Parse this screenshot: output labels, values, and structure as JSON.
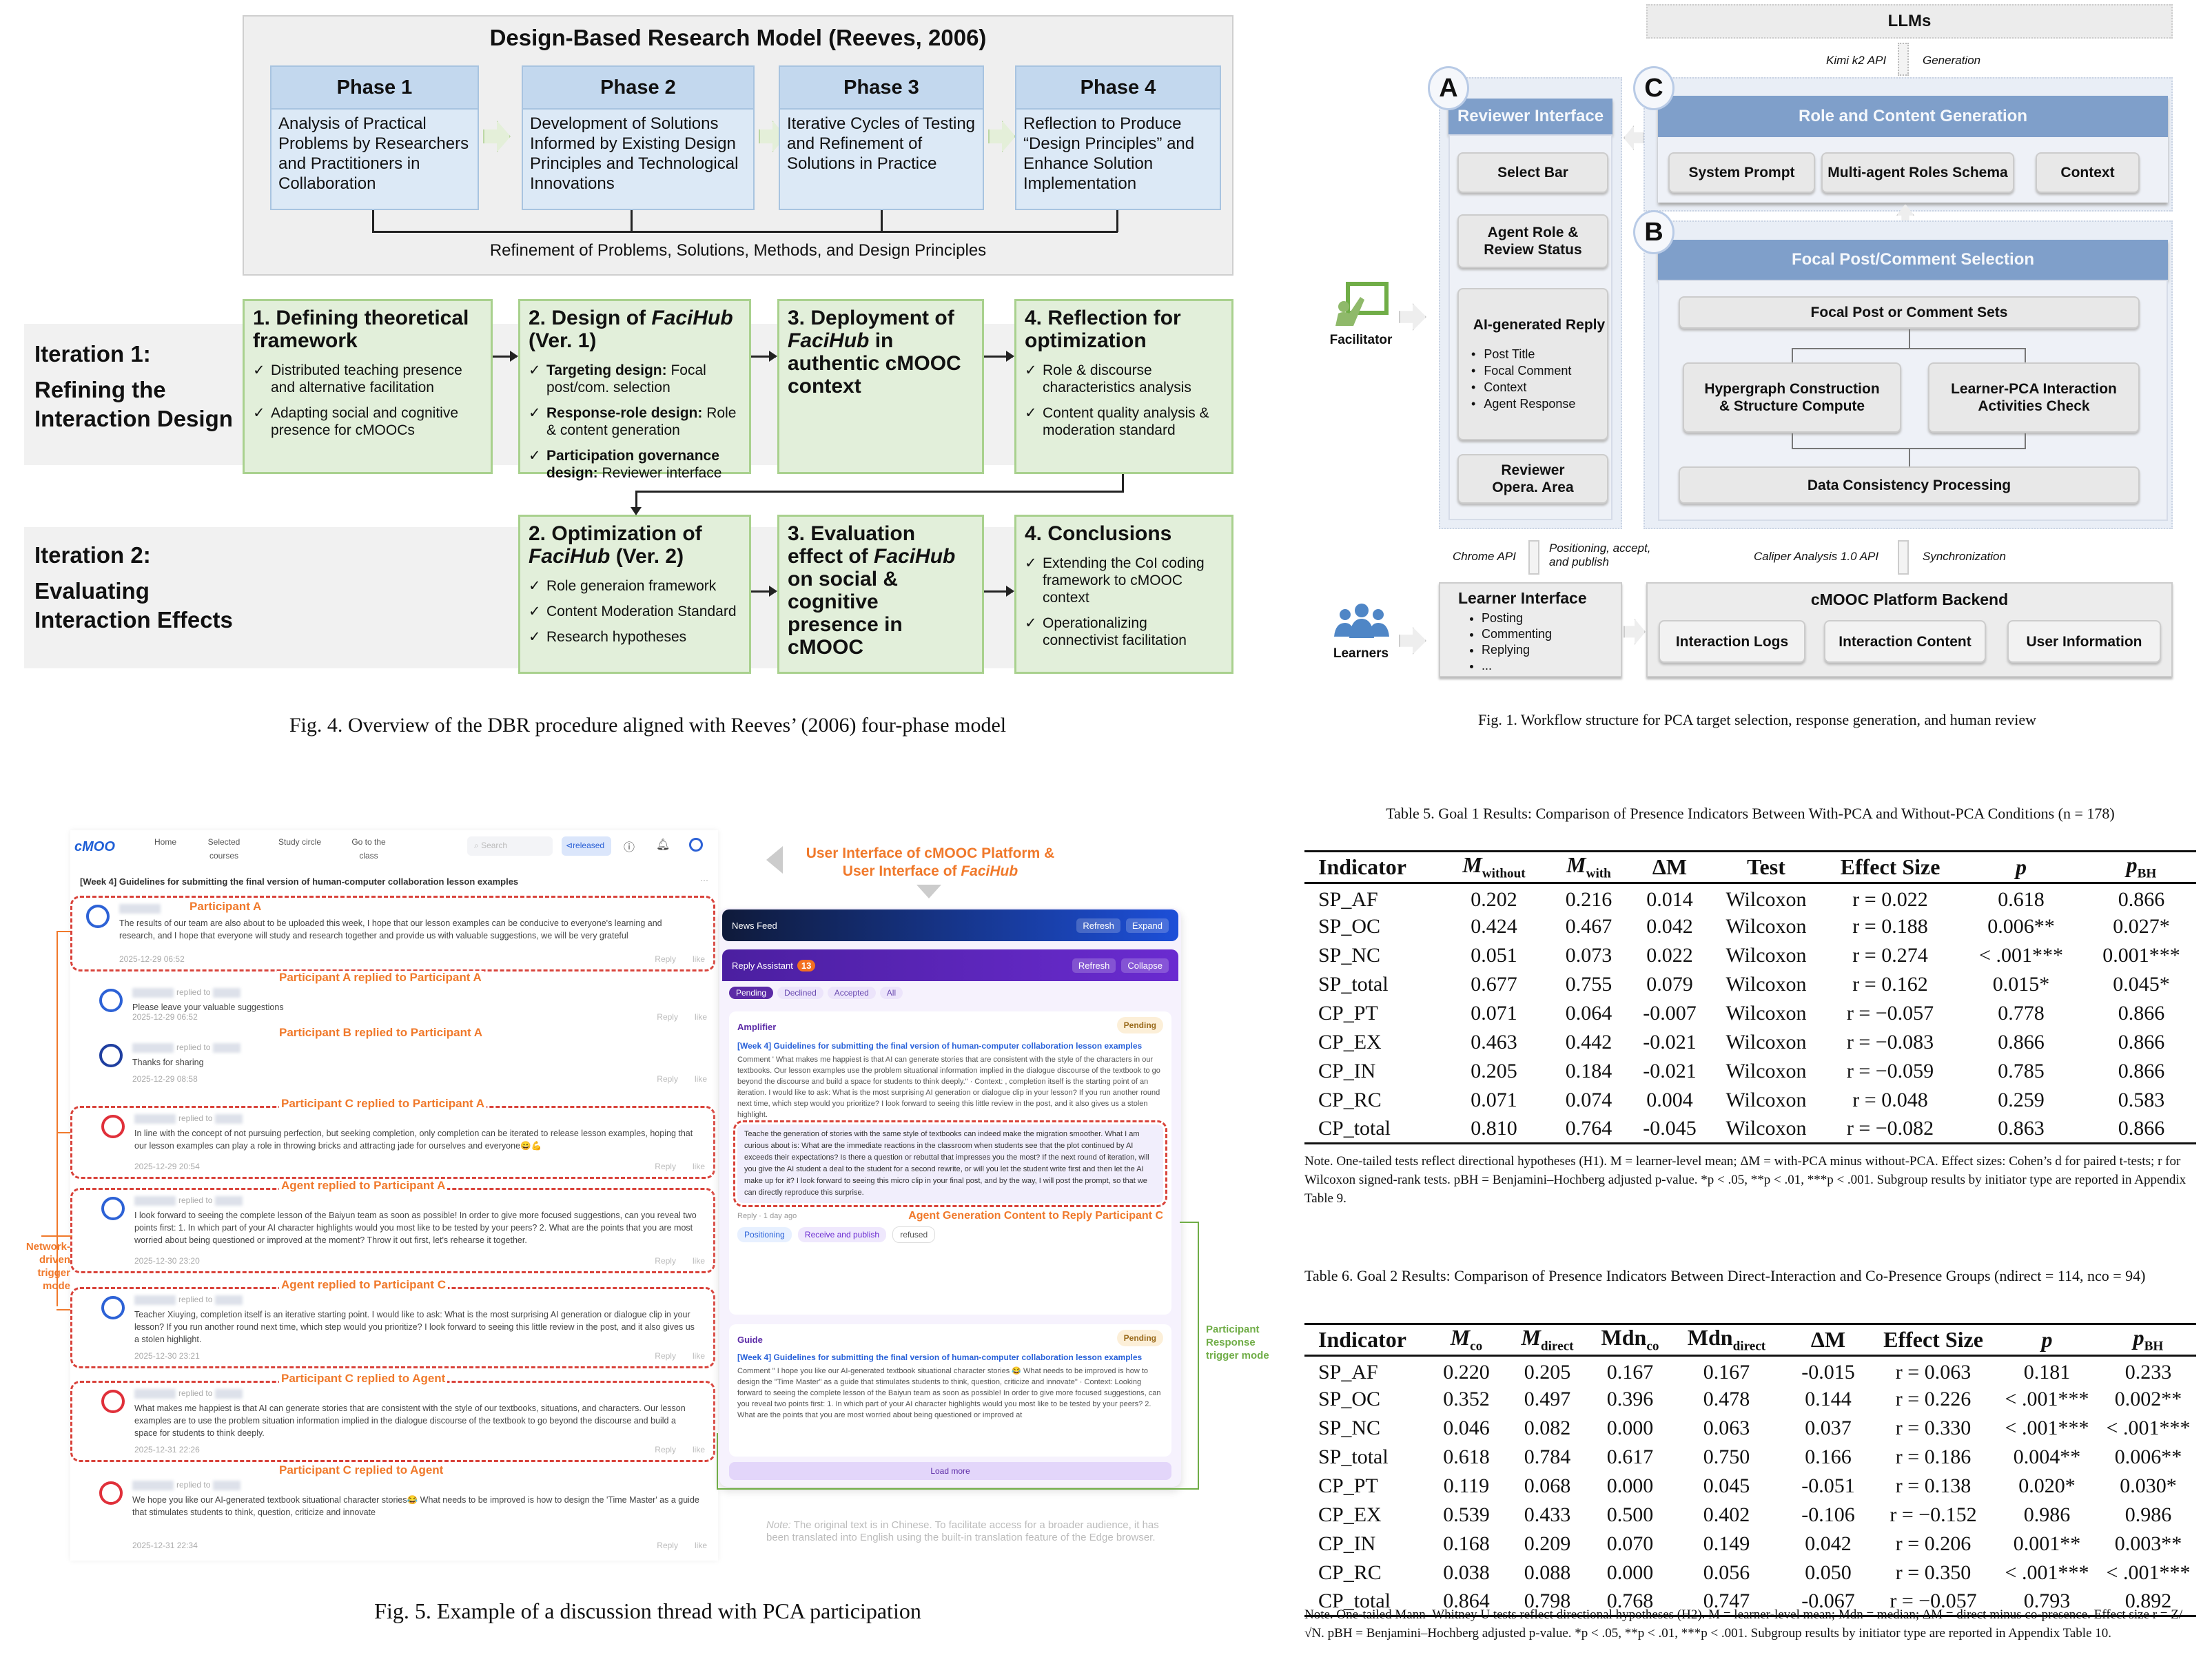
{
  "fig4": {
    "title": "Design-Based Research Model (Reeves, 2006)",
    "phases": [
      {
        "label": "Phase 1",
        "text": "Analysis of Practical Problems by Researchers and Practitioners in Collaboration"
      },
      {
        "label": "Phase 2",
        "text": "Development of Solutions Informed by Existing Design Principles and Technological Innovations"
      },
      {
        "label": "Phase 3",
        "text": "Iterative Cycles of Testing and Refinement of Solutions in Practice"
      },
      {
        "label": "Phase 4",
        "text": "Reflection to Produce “Design Principles” and Enhance Solution Implementation"
      }
    ],
    "refinement": "Refinement of Problems, Solutions, Methods, and Design Principles",
    "iterations": [
      {
        "label1": "Iteration 1:",
        "label2": "Refining the Interaction Design",
        "steps": [
          {
            "title": [
              {
                "t": "1. Defining theoretical framework"
              }
            ],
            "bullets": [
              {
                "t": "Distributed teaching presence and alternative facilitation"
              },
              {
                "t": "Adapting social and cognitive presence for cMOOCs"
              }
            ]
          },
          {
            "title": [
              {
                "t": "2. Design of "
              },
              {
                "t": "FaciHub",
                "i": true
              },
              {
                "t": " (Ver. 1)"
              }
            ],
            "bullets": [
              {
                "b": "Targeting design:",
                "t": " Focal post/com. selection"
              },
              {
                "b": "Response-role design:",
                "t": " Role & content generation"
              },
              {
                "b": "Participation governance design:",
                "t": " Reviewer interface"
              }
            ]
          },
          {
            "title": [
              {
                "t": "3. Deployment of "
              },
              {
                "t": "FaciHub",
                "i": true
              },
              {
                "t": " in authentic cMOOC context"
              }
            ],
            "bullets": []
          },
          {
            "title": [
              {
                "t": "4. Reflection for optimization"
              }
            ],
            "bullets": [
              {
                "t": "Role & discourse characteristics analysis"
              },
              {
                "t": "Content quality analysis & moderation standard"
              }
            ]
          }
        ]
      },
      {
        "label1": "Iteration 2:",
        "label2": "Evaluating Interaction Effects",
        "steps": [
          {
            "title": [
              {
                "t": "2. Optimization of "
              },
              {
                "t": "FaciHub",
                "i": true
              },
              {
                "t": " (Ver. 2)"
              }
            ],
            "bullets": [
              {
                "t": "Role generaion framework"
              },
              {
                "t": "Content Moderation Standard"
              },
              {
                "t": "Research hypotheses"
              }
            ]
          },
          {
            "title": [
              {
                "t": "3. Evaluation effect of "
              },
              {
                "t": "FaciHub",
                "i": true
              },
              {
                "t": " on social & cognitive presence in cMOOC"
              }
            ],
            "bullets": []
          },
          {
            "title": [
              {
                "t": "4. Conclusions"
              }
            ],
            "bullets": [
              {
                "t": "Extending the CoI coding framework to cMOOC context"
              },
              {
                "t": "Operationalizing connectivist facilitation"
              }
            ]
          }
        ]
      }
    ],
    "caption": "Fig. 4.  Overview of the DBR procedure aligned with Reeves’ (2006) four-phase model"
  },
  "fig1": {
    "llms": "LLMs",
    "kimi": "Kimi k2 API",
    "generation": "Generation",
    "badges": {
      "a": "A",
      "b": "B",
      "c": "C"
    },
    "reviewer": {
      "title": "Reviewer Interface",
      "select_bar": "Select Bar",
      "agent_role": "Agent Role & Review Status",
      "ai_reply": "AI-generated Reply",
      "ai_bullets": [
        "Post Title",
        "Focal Comment",
        "Context",
        "Agent Response"
      ],
      "opera_area": "Reviewer Opera. Area"
    },
    "role_content": {
      "title": "Role and Content Generation",
      "items": [
        "System Prompt",
        "Multi-agent Roles Schema",
        "Context"
      ]
    },
    "focal": {
      "title": "Focal Post/Comment Selection",
      "sets": "Focal Post or Comment Sets",
      "hypergraph": "Hypergraph Construction & Structure Compute",
      "learner_pca": "Learner-PCA Interaction Activities Check",
      "consistency": "Data Consistency Processing"
    },
    "facilitator": "Facilitator",
    "learners": "Learners",
    "chrome_api": "Chrome API",
    "positioning": "Positioning, accept, and publish",
    "caliper": "Caliper Analysis 1.0 API",
    "sync": "Synchronization",
    "learner_interface": {
      "title": "Learner Interface",
      "items": [
        "Posting",
        "Commenting",
        "Replying",
        "..."
      ]
    },
    "backend": {
      "title": "cMOOC Platform Backend",
      "items": [
        "Interaction Logs",
        "Interaction Content",
        "User Information"
      ]
    },
    "accent": "#7f9fca",
    "caption": "Fig. 1.  Workflow structure for PCA target selection, response generation, and human review"
  },
  "fig5": {
    "nav": {
      "logo": "cMOO",
      "items": [
        "Home",
        "Selected courses",
        "Study circle",
        "Go to the class"
      ],
      "search": "Search",
      "released": "released"
    },
    "thread_title": "[Week 4]  Guidelines for submitting the final version of human-computer collaboration lesson examples",
    "reply": "Reply",
    "like": "like",
    "replied": "replied to",
    "comments": [
      {
        "annotation": "Participant A",
        "text": "The results of our team are also about to be uploaded this week, I hope that our lesson examples can be conducive to everyone's learning and research, and I hope that everyone will study and research together and provide us with valuable suggestions, we will be very grateful",
        "date": "2025-12-29 06:52"
      },
      {
        "annotation": "Participant  A replied to Participant A",
        "text": "Please leave your valuable suggestions",
        "date": "2025-12-29 06:52"
      },
      {
        "annotation": "Participant B replied to Participant A",
        "text": "Thanks for sharing",
        "date": "2025-12-29 08:58"
      },
      {
        "annotation": "Participant C replied to Participant A",
        "text": "In line with the concept of not pursuing perfection, but seeking completion, only completion can be iterated to release lesson examples, hoping that our lesson examples can play a role in throwing bricks and attracting jade for ourselves and everyone😀💪",
        "date": "2025-12-29 20:54"
      },
      {
        "annotation": "Agent replied to Participant A",
        "text": "I look forward to seeing the complete lesson of the Baiyun team as soon as possible! In order to give more focused suggestions, can you reveal two points first: 1. In which part of your AI character highlights would you most like to be tested by your peers? 2. What are the points that you are most worried about being questioned or improved at the moment? Throw it out first, let's rehearse it together.",
        "date": "2025-12-30 23:20"
      },
      {
        "annotation": "Agent replied to Participant C",
        "text": "Teacher Xiuying, completion itself is an iterative starting point. I would like to ask: What is the most surprising AI generation or dialogue clip in your lesson? If you run another round next time, which step would you prioritize? I look forward to seeing this little review in the post, and it also gives us a stolen highlight.",
        "date": "2025-12-30 23:21"
      },
      {
        "annotation": "Participant C replied to Agent",
        "text": "What makes me happiest is that AI can generate stories that are consistent with the style of our textbooks, situations, and characters. Our lesson examples are to use the problem situation information implied in the dialogue discourse of the textbook to go beyond the discourse and build a space for students to think deeply.",
        "date": "2025-12-31 22:26"
      },
      {
        "annotation": "Participant C replied to Agent",
        "text": "We hope you like our AI-generated textbook situational character stories😂 What needs to be improved is how to design the 'Time Master' as a guide that stimulates students to think, question, criticize and innovate",
        "date": "2025-12-31 22:34"
      }
    ],
    "network_label": "Network-driven trigger mode",
    "header_line1": "User Interface of cMOOC Platform &",
    "header_line2_prefix": "User Interface of ",
    "header_line2_italic": "FaciHub",
    "facihub": {
      "news_feed": "News Feed",
      "refresh": "Refresh",
      "expand": "Expand",
      "reply_assistant": "Reply Assistant",
      "count": "13",
      "collapse": "Collapse",
      "tabs": [
        "Pending",
        "Declined",
        "Accepted",
        "All"
      ],
      "amplifier": {
        "role": "Amplifier",
        "status": "Pending",
        "link": "[Week 4] Guidelines for submitting the final version of human-computer collaboration lesson examples",
        "comment": "Comment '  What makes me happiest is that AI can generate stories that are consistent with the style of the characters in our textbooks. Our lesson examples use the problem situational information implied in the dialogue discourse of the textbook to go beyond the discourse and build a space for students to think deeply.\" · Context:  , completion itself is the starting point of an iteration. I would like to ask: What is the most surprising AI generation or dialogue clip in your lesson? If you run another round next time, which step would you prioritize? I look forward to seeing this little review in the post, and it also gives us a stolen highlight.",
        "draft": "Teache  the generation of stories with the same style of textbooks can indeed make the migration smoother. What I am curious about is: What are the immediate reactions in the classroom when students see that the plot continued by AI exceeds their expectations? Is there a question or rebuttal that impresses you the most? If the next round of iteration, will you give the AI student a deal to the student for a second rewrite, or will you let the student write first and then let the AI make up for it? I look forward to seeing this micro clip in your final post, and by the way, I will post the prompt, so that we can directly reproduce this surprise.",
        "meta": "Reply · 1 day ago",
        "chips": [
          "Positioning",
          "Receive and publish",
          "refused"
        ]
      },
      "guide": {
        "role": "Guide",
        "status": "Pending",
        "link": "[Week 4] Guidelines for submitting the final version of human-computer collaboration lesson examples",
        "comment": "Comment \"  I hope you like our AI-generated textbook situational character stories 😂 What needs to be improved is how to design the \"Time Master\" as a guide that stimulates students to think, question, criticize and innovate\" · Context: Looking forward to seeing the complete lesson of the Baiyun team as soon as possible! In order to give more focused suggestions, can you reveal two points first: 1. In which part of your AI character highlights would you most like to be tested by your peers? 2. What are the points that you are most worried about being questioned or improved at"
      },
      "load_more": "Load more"
    },
    "agent_gen_label": "Agent Generation Content to Reply Participant C",
    "response_label": "Participant Response trigger mode",
    "note_label": "Note:",
    "note": " The original text is in Chinese. To facilitate access for a broader audience, it has been translated into English using the built-in translation feature of the Edge browser.",
    "colors": {
      "annotation": "#f0792b",
      "dashed": "#d9433b",
      "response": "#70ad47",
      "news_feed": "#1d4fd8",
      "reply_assistant": "#6a2bd0"
    },
    "caption": "Fig. 5.  Example of a discussion thread with PCA participation"
  },
  "table5": {
    "caption": "Table 5.  Goal 1 Results: Comparison of Presence Indicators Between With-PCA and Without-PCA Conditions (n = 178)",
    "headers": [
      {
        "m": "Indicator"
      },
      {
        "m": "M",
        "s": "without"
      },
      {
        "m": "M",
        "s": "with"
      },
      {
        "m": "ΔM"
      },
      {
        "m": "Test"
      },
      {
        "m": "Effect Size"
      },
      {
        "m": "p"
      },
      {
        "m": "p",
        "s": "BH"
      }
    ],
    "rows": [
      [
        "SP_AF",
        "0.202",
        "0.216",
        "0.014",
        "Wilcoxon",
        "r = 0.022",
        "0.618",
        "0.866"
      ],
      [
        "SP_OC",
        "0.424",
        "0.467",
        "0.042",
        "Wilcoxon",
        "r = 0.188",
        "0.006**",
        "0.027*"
      ],
      [
        "SP_NC",
        "0.051",
        "0.073",
        "0.022",
        "Wilcoxon",
        "r = 0.274",
        "< .001***",
        "0.001***"
      ],
      [
        "SP_total",
        "0.677",
        "0.755",
        "0.079",
        "Wilcoxon",
        "r = 0.162",
        "0.015*",
        "0.045*"
      ],
      [
        "CP_PT",
        "0.071",
        "0.064",
        "-0.007",
        "Wilcoxon",
        "r = −0.057",
        "0.778",
        "0.866"
      ],
      [
        "CP_EX",
        "0.463",
        "0.442",
        "-0.021",
        "Wilcoxon",
        "r = −0.083",
        "0.866",
        "0.866"
      ],
      [
        "CP_IN",
        "0.205",
        "0.184",
        "-0.021",
        "Wilcoxon",
        "r = −0.059",
        "0.785",
        "0.866"
      ],
      [
        "CP_RC",
        "0.071",
        "0.074",
        "0.004",
        "Wilcoxon",
        "r = 0.048",
        "0.259",
        "0.583"
      ],
      [
        "CP_total",
        "0.810",
        "0.764",
        "-0.045",
        "Wilcoxon",
        "r = −0.082",
        "0.863",
        "0.866"
      ]
    ],
    "note": "Note. One-tailed tests reflect directional hypotheses (H1). M = learner-level mean; ΔM = with-PCA minus without-PCA. Effect sizes: Cohen’s d for paired t-tests; r for Wilcoxon signed-rank tests. pBH = Benjamini–Hochberg adjusted p-value. *p < .05, **p < .01, ***p < .001. Subgroup results by initiator type are reported in Appendix Table 9."
  },
  "table6": {
    "caption": "Table 6.  Goal 2 Results: Comparison of Presence Indicators Between Direct-Interaction and Co-Presence Groups (ndirect = 114, nco = 94)",
    "headers": [
      {
        "m": "Indicator"
      },
      {
        "m": "M",
        "s": "co"
      },
      {
        "m": "M",
        "s": "direct"
      },
      {
        "m": "Mdn",
        "s": "co"
      },
      {
        "m": "Mdn",
        "s": "direct"
      },
      {
        "m": "ΔM"
      },
      {
        "m": "Effect Size"
      },
      {
        "m": "p"
      },
      {
        "m": "p",
        "s": "BH"
      }
    ],
    "rows": [
      [
        "SP_AF",
        "0.220",
        "0.205",
        "0.167",
        "0.167",
        "-0.015",
        "r = 0.063",
        "0.181",
        "0.233"
      ],
      [
        "SP_OC",
        "0.352",
        "0.497",
        "0.396",
        "0.478",
        "0.144",
        "r = 0.226",
        "< .001***",
        "0.002**"
      ],
      [
        "SP_NC",
        "0.046",
        "0.082",
        "0.000",
        "0.063",
        "0.037",
        "r = 0.330",
        "< .001***",
        "< .001***"
      ],
      [
        "SP_total",
        "0.618",
        "0.784",
        "0.617",
        "0.750",
        "0.166",
        "r = 0.186",
        "0.004**",
        "0.006**"
      ],
      [
        "CP_PT",
        "0.119",
        "0.068",
        "0.000",
        "0.045",
        "-0.051",
        "r = 0.138",
        "0.020*",
        "0.030*"
      ],
      [
        "CP_EX",
        "0.539",
        "0.433",
        "0.500",
        "0.402",
        "-0.106",
        "r = −0.152",
        "0.986",
        "0.986"
      ],
      [
        "CP_IN",
        "0.168",
        "0.209",
        "0.070",
        "0.149",
        "0.042",
        "r = 0.206",
        "0.001**",
        "0.003**"
      ],
      [
        "CP_RC",
        "0.038",
        "0.088",
        "0.000",
        "0.056",
        "0.050",
        "r = 0.350",
        "< .001***",
        "< .001***"
      ],
      [
        "CP_total",
        "0.864",
        "0.798",
        "0.768",
        "0.747",
        "-0.067",
        "r = −0.057",
        "0.793",
        "0.892"
      ]
    ],
    "note": "Note. One-tailed Mann–Whitney U tests reflect directional hypotheses (H2). M = learner-level mean; Mdn = median; ΔM = direct minus co-presence. Effect size r = Z/√N. pBH = Benjamini–Hochberg adjusted p-value. *p < .05, **p < .01, ***p < .001. Subgroup results by initiator type are reported in Appendix Table 10."
  }
}
